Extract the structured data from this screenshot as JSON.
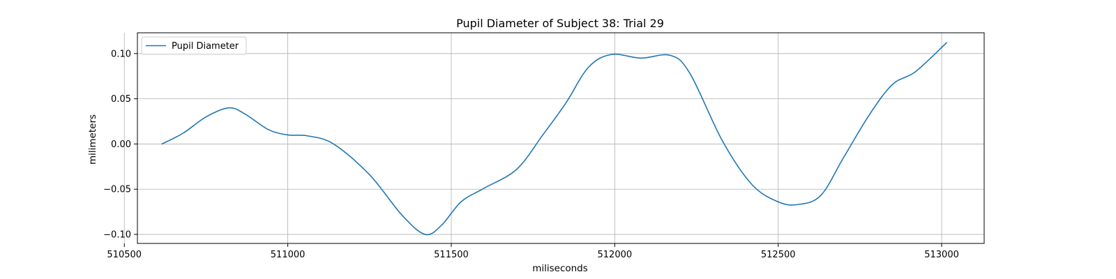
{
  "chart_data": {
    "type": "line",
    "title": "Pupil Diameter of Subject 38: Trial 29",
    "xlabel": "miliseconds",
    "ylabel": "milimeters",
    "xlim": [
      510540,
      513130
    ],
    "ylim": [
      -0.11,
      0.123
    ],
    "xticks": [
      510500,
      511000,
      511500,
      512000,
      512500,
      513000
    ],
    "xtick_labels": [
      "510500",
      "511000",
      "511500",
      "512000",
      "512500",
      "513000"
    ],
    "yticks": [
      -0.1,
      -0.05,
      0.0,
      0.05,
      0.1
    ],
    "ytick_labels": [
      "−0.10",
      "−0.05",
      "0.00",
      "0.05",
      "0.10"
    ],
    "grid": true,
    "legend": {
      "position": "upper-left",
      "entries": [
        "Pupil Diameter"
      ]
    },
    "series": [
      {
        "name": "Pupil Diameter",
        "color": "#1f77b4",
        "x": [
          510615,
          510680,
          510750,
          510820,
          510870,
          510940,
          511000,
          511060,
          511140,
          511250,
          511350,
          511420,
          511470,
          511530,
          511600,
          511700,
          511780,
          511850,
          511920,
          511990,
          512080,
          512170,
          512230,
          512330,
          512420,
          512500,
          512560,
          512630,
          512700,
          512780,
          512850,
          512920,
          513015
        ],
        "y": [
          0.0,
          0.012,
          0.03,
          0.04,
          0.033,
          0.016,
          0.01,
          0.009,
          0.0,
          -0.034,
          -0.079,
          -0.1,
          -0.09,
          -0.064,
          -0.049,
          -0.028,
          0.01,
          0.045,
          0.085,
          0.099,
          0.095,
          0.098,
          0.078,
          0.003,
          -0.045,
          -0.064,
          -0.067,
          -0.057,
          -0.015,
          0.033,
          0.066,
          0.08,
          0.112
        ]
      }
    ]
  }
}
